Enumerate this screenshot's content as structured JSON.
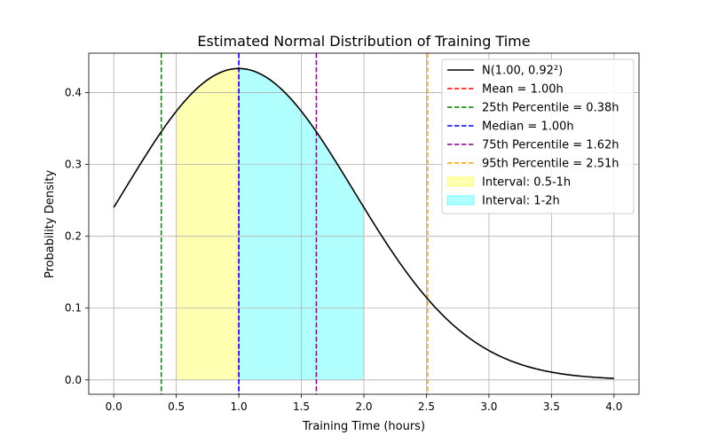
{
  "chart_data": {
    "type": "line",
    "title": "Estimated Normal Distribution of Training Time",
    "xlabel": "Training Time (hours)",
    "ylabel": "Probability Density",
    "xlim": [
      -0.2,
      4.2
    ],
    "ylim": [
      -0.02,
      0.455
    ],
    "grid": true,
    "legend_position": "top-right",
    "x_ticks": [
      0.0,
      0.5,
      1.0,
      1.5,
      2.0,
      2.5,
      3.0,
      3.5,
      4.0
    ],
    "x_tick_labels": [
      "0.0",
      "0.5",
      "1.0",
      "1.5",
      "2.0",
      "2.5",
      "3.0",
      "3.5",
      "4.0"
    ],
    "y_ticks": [
      0.0,
      0.1,
      0.2,
      0.3,
      0.4
    ],
    "y_tick_labels": [
      "0.0",
      "0.1",
      "0.2",
      "0.3",
      "0.4"
    ],
    "distribution": {
      "mean": 1.0,
      "std": 0.92,
      "x_range": [
        0.0,
        4.0
      ]
    },
    "series": [
      {
        "name": "N(1.00, 0.92²)",
        "kind": "curve",
        "color": "#000000"
      }
    ],
    "vlines": [
      {
        "name": "Mean = 1.00h",
        "x": 1.0,
        "color": "#ff0000"
      },
      {
        "name": "25th Percentile = 0.38h",
        "x": 0.38,
        "color": "#008000"
      },
      {
        "name": "Median = 1.00h",
        "x": 1.0,
        "color": "#0000ff"
      },
      {
        "name": "75th Percentile = 1.62h",
        "x": 1.62,
        "color": "#800080"
      },
      {
        "name": "95th Percentile = 2.51h",
        "x": 2.51,
        "color": "#ffa500"
      }
    ],
    "intervals": [
      {
        "name": "Interval: 0.5-1h",
        "from": 0.5,
        "to": 1.0,
        "color": "#ffff00"
      },
      {
        "name": "Interval: 1-2h",
        "from": 1.0,
        "to": 2.0,
        "color": "#00ffff"
      }
    ]
  }
}
